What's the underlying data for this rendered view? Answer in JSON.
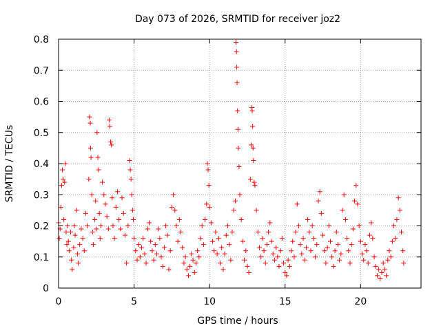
{
  "chart_data": {
    "type": "scatter",
    "title": "Day 073 of 2026, SRMTID for receiver joz2",
    "xlabel": "GPS time / hours",
    "ylabel": "SRMTID / TECUs",
    "xlim": [
      0,
      24
    ],
    "ylim": [
      0,
      0.8
    ],
    "x_ticks": [
      0,
      5,
      10,
      15,
      20
    ],
    "x_tick_labels": [
      "0",
      "5",
      "10",
      "15",
      "20"
    ],
    "y_ticks": [
      0,
      0.1,
      0.2,
      0.3,
      0.4,
      0.5,
      0.6,
      0.7,
      0.8
    ],
    "y_tick_labels": [
      "0",
      "0.1",
      "0.2",
      "0.3",
      "0.4",
      "0.5",
      "0.6",
      "0.7",
      "0.8"
    ],
    "grid": true,
    "marker": "+",
    "color": "#ff0000",
    "series": [
      {
        "name": "SRMTID",
        "points": [
          [
            0.0,
            0.21
          ],
          [
            0.05,
            0.16
          ],
          [
            0.1,
            0.19
          ],
          [
            0.15,
            0.26
          ],
          [
            0.2,
            0.33
          ],
          [
            0.25,
            0.38
          ],
          [
            0.3,
            0.35
          ],
          [
            0.35,
            0.22
          ],
          [
            0.4,
            0.34
          ],
          [
            0.45,
            0.4
          ],
          [
            0.5,
            0.18
          ],
          [
            0.55,
            0.14
          ],
          [
            0.6,
            0.2
          ],
          [
            0.65,
            0.15
          ],
          [
            0.7,
            0.12
          ],
          [
            0.8,
            0.18
          ],
          [
            0.85,
            0.09
          ],
          [
            0.9,
            0.06
          ],
          [
            1.0,
            0.13
          ],
          [
            1.05,
            0.2
          ],
          [
            1.1,
            0.17
          ],
          [
            1.2,
            0.25
          ],
          [
            1.25,
            0.11
          ],
          [
            1.3,
            0.08
          ],
          [
            1.4,
            0.14
          ],
          [
            1.5,
            0.19
          ],
          [
            1.6,
            0.16
          ],
          [
            1.7,
            0.12
          ],
          [
            1.8,
            0.24
          ],
          [
            1.9,
            0.2
          ],
          [
            2.0,
            0.35
          ],
          [
            2.05,
            0.55
          ],
          [
            2.1,
            0.53
          ],
          [
            2.12,
            0.45
          ],
          [
            2.15,
            0.42
          ],
          [
            2.2,
            0.3
          ],
          [
            2.25,
            0.18
          ],
          [
            2.3,
            0.14
          ],
          [
            2.4,
            0.22
          ],
          [
            2.45,
            0.28
          ],
          [
            2.5,
            0.19
          ],
          [
            2.55,
            0.5
          ],
          [
            2.6,
            0.42
          ],
          [
            2.65,
            0.38
          ],
          [
            2.7,
            0.24
          ],
          [
            2.75,
            0.16
          ],
          [
            2.8,
            0.2
          ],
          [
            2.9,
            0.34
          ],
          [
            3.0,
            0.3
          ],
          [
            3.1,
            0.27
          ],
          [
            3.2,
            0.23
          ],
          [
            3.3,
            0.19
          ],
          [
            3.35,
            0.54
          ],
          [
            3.4,
            0.52
          ],
          [
            3.45,
            0.47
          ],
          [
            3.5,
            0.46
          ],
          [
            3.55,
            0.29
          ],
          [
            3.6,
            0.2
          ],
          [
            3.7,
            0.16
          ],
          [
            3.8,
            0.26
          ],
          [
            3.9,
            0.31
          ],
          [
            4.0,
            0.22
          ],
          [
            4.1,
            0.19
          ],
          [
            4.2,
            0.29
          ],
          [
            4.3,
            0.24
          ],
          [
            4.4,
            0.17
          ],
          [
            4.5,
            0.08
          ],
          [
            4.6,
            0.2
          ],
          [
            4.7,
            0.41
          ],
          [
            4.75,
            0.38
          ],
          [
            4.8,
            0.35
          ],
          [
            4.85,
            0.3
          ],
          [
            4.9,
            0.25
          ],
          [
            4.95,
            0.22
          ],
          [
            5.0,
            0.16
          ],
          [
            5.1,
            0.12
          ],
          [
            5.2,
            0.09
          ],
          [
            5.3,
            0.14
          ],
          [
            5.4,
            0.1
          ],
          [
            5.5,
            0.13
          ],
          [
            5.6,
            0.16
          ],
          [
            5.7,
            0.11
          ],
          [
            5.8,
            0.08
          ],
          [
            5.9,
            0.19
          ],
          [
            6.0,
            0.21
          ],
          [
            6.1,
            0.15
          ],
          [
            6.2,
            0.12
          ],
          [
            6.3,
            0.09
          ],
          [
            6.4,
            0.14
          ],
          [
            6.5,
            0.11
          ],
          [
            6.6,
            0.19
          ],
          [
            6.7,
            0.16
          ],
          [
            6.8,
            0.1
          ],
          [
            6.9,
            0.07
          ],
          [
            7.0,
            0.13
          ],
          [
            7.1,
            0.2
          ],
          [
            7.2,
            0.17
          ],
          [
            7.3,
            0.06
          ],
          [
            7.4,
            0.12
          ],
          [
            7.5,
            0.26
          ],
          [
            7.6,
            0.3
          ],
          [
            7.7,
            0.25
          ],
          [
            7.8,
            0.2
          ],
          [
            7.9,
            0.15
          ],
          [
            8.0,
            0.22
          ],
          [
            8.1,
            0.18
          ],
          [
            8.2,
            0.13
          ],
          [
            8.3,
            0.08
          ],
          [
            8.4,
            0.1
          ],
          [
            8.5,
            0.06
          ],
          [
            8.6,
            0.04
          ],
          [
            8.7,
            0.07
          ],
          [
            8.8,
            0.11
          ],
          [
            8.9,
            0.09
          ],
          [
            9.0,
            0.05
          ],
          [
            9.1,
            0.08
          ],
          [
            9.2,
            0.12
          ],
          [
            9.3,
            0.1
          ],
          [
            9.4,
            0.16
          ],
          [
            9.5,
            0.2
          ],
          [
            9.6,
            0.14
          ],
          [
            9.7,
            0.22
          ],
          [
            9.8,
            0.27
          ],
          [
            9.85,
            0.4
          ],
          [
            9.9,
            0.38
          ],
          [
            9.95,
            0.33
          ],
          [
            10.0,
            0.26
          ],
          [
            10.1,
            0.21
          ],
          [
            10.2,
            0.15
          ],
          [
            10.3,
            0.12
          ],
          [
            10.4,
            0.18
          ],
          [
            10.5,
            0.11
          ],
          [
            10.6,
            0.16
          ],
          [
            10.7,
            0.08
          ],
          [
            10.8,
            0.13
          ],
          [
            10.9,
            0.06
          ],
          [
            11.0,
            0.11
          ],
          [
            11.1,
            0.17
          ],
          [
            11.2,
            0.2
          ],
          [
            11.3,
            0.14
          ],
          [
            11.4,
            0.09
          ],
          [
            11.5,
            0.18
          ],
          [
            11.6,
            0.25
          ],
          [
            11.7,
            0.28
          ],
          [
            11.75,
            0.79
          ],
          [
            11.78,
            0.76
          ],
          [
            11.8,
            0.71
          ],
          [
            11.82,
            0.66
          ],
          [
            11.85,
            0.57
          ],
          [
            11.88,
            0.51
          ],
          [
            11.9,
            0.45
          ],
          [
            11.95,
            0.39
          ],
          [
            12.0,
            0.3
          ],
          [
            12.1,
            0.22
          ],
          [
            12.2,
            0.15
          ],
          [
            12.3,
            0.09
          ],
          [
            12.4,
            0.12
          ],
          [
            12.5,
            0.07
          ],
          [
            12.6,
            0.05
          ],
          [
            12.7,
            0.35
          ],
          [
            12.75,
            0.46
          ],
          [
            12.8,
            0.58
          ],
          [
            12.82,
            0.57
          ],
          [
            12.85,
            0.52
          ],
          [
            12.88,
            0.45
          ],
          [
            12.9,
            0.41
          ],
          [
            12.95,
            0.34
          ],
          [
            13.0,
            0.33
          ],
          [
            13.1,
            0.25
          ],
          [
            13.2,
            0.18
          ],
          [
            13.3,
            0.13
          ],
          [
            13.4,
            0.1
          ],
          [
            13.5,
            0.16
          ],
          [
            13.6,
            0.12
          ],
          [
            13.7,
            0.08
          ],
          [
            13.8,
            0.14
          ],
          [
            13.9,
            0.18
          ],
          [
            14.0,
            0.21
          ],
          [
            14.1,
            0.15
          ],
          [
            14.2,
            0.11
          ],
          [
            14.3,
            0.09
          ],
          [
            14.4,
            0.13
          ],
          [
            14.5,
            0.1
          ],
          [
            14.6,
            0.07
          ],
          [
            14.7,
            0.12
          ],
          [
            14.8,
            0.16
          ],
          [
            14.9,
            0.08
          ],
          [
            15.0,
            0.05
          ],
          [
            15.1,
            0.04
          ],
          [
            15.2,
            0.09
          ],
          [
            15.3,
            0.07
          ],
          [
            15.4,
            0.12
          ],
          [
            15.5,
            0.15
          ],
          [
            15.6,
            0.1
          ],
          [
            15.7,
            0.18
          ],
          [
            15.8,
            0.27
          ],
          [
            15.9,
            0.2
          ],
          [
            16.0,
            0.14
          ],
          [
            16.1,
            0.11
          ],
          [
            16.2,
            0.16
          ],
          [
            16.3,
            0.09
          ],
          [
            16.4,
            0.13
          ],
          [
            16.5,
            0.22
          ],
          [
            16.6,
            0.18
          ],
          [
            16.7,
            0.12
          ],
          [
            16.8,
            0.2
          ],
          [
            16.9,
            0.16
          ],
          [
            17.0,
            0.1
          ],
          [
            17.1,
            0.14
          ],
          [
            17.2,
            0.28
          ],
          [
            17.3,
            0.31
          ],
          [
            17.4,
            0.24
          ],
          [
            17.5,
            0.17
          ],
          [
            17.6,
            0.12
          ],
          [
            17.7,
            0.08
          ],
          [
            17.8,
            0.13
          ],
          [
            17.9,
            0.2
          ],
          [
            18.0,
            0.15
          ],
          [
            18.1,
            0.1
          ],
          [
            18.2,
            0.07
          ],
          [
            18.3,
            0.12
          ],
          [
            18.4,
            0.18
          ],
          [
            18.5,
            0.14
          ],
          [
            18.6,
            0.09
          ],
          [
            18.7,
            0.11
          ],
          [
            18.8,
            0.25
          ],
          [
            18.9,
            0.3
          ],
          [
            19.0,
            0.22
          ],
          [
            19.1,
            0.16
          ],
          [
            19.2,
            0.12
          ],
          [
            19.3,
            0.08
          ],
          [
            19.4,
            0.14
          ],
          [
            19.5,
            0.19
          ],
          [
            19.6,
            0.28
          ],
          [
            19.7,
            0.33
          ],
          [
            19.8,
            0.27
          ],
          [
            19.9,
            0.2
          ],
          [
            20.0,
            0.15
          ],
          [
            20.1,
            0.11
          ],
          [
            20.2,
            0.09
          ],
          [
            20.3,
            0.14
          ],
          [
            20.4,
            0.12
          ],
          [
            20.5,
            0.08
          ],
          [
            20.6,
            0.17
          ],
          [
            20.7,
            0.21
          ],
          [
            20.8,
            0.16
          ],
          [
            20.9,
            0.1
          ],
          [
            21.0,
            0.07
          ],
          [
            21.1,
            0.04
          ],
          [
            21.2,
            0.06
          ],
          [
            21.3,
            0.03
          ],
          [
            21.4,
            0.05
          ],
          [
            21.5,
            0.08
          ],
          [
            21.6,
            0.06
          ],
          [
            21.7,
            0.04
          ],
          [
            21.8,
            0.09
          ],
          [
            21.9,
            0.12
          ],
          [
            22.0,
            0.1
          ],
          [
            22.1,
            0.15
          ],
          [
            22.2,
            0.2
          ],
          [
            22.3,
            0.16
          ],
          [
            22.4,
            0.22
          ],
          [
            22.5,
            0.29
          ],
          [
            22.6,
            0.25
          ],
          [
            22.7,
            0.18
          ],
          [
            22.8,
            0.12
          ],
          [
            22.85,
            0.08
          ]
        ]
      }
    ]
  }
}
